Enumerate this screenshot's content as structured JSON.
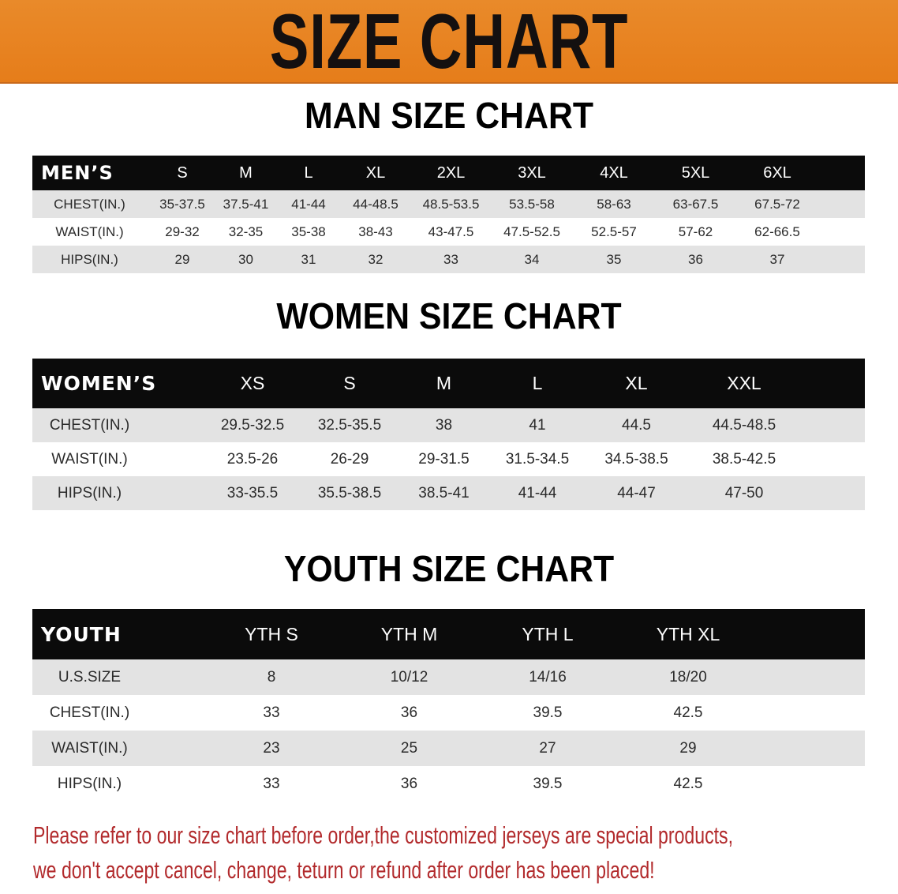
{
  "banner": {
    "title": "SIZE CHART",
    "color": "#e67d1a"
  },
  "men": {
    "title": "MAN SIZE CHART",
    "headers": [
      "MEN’S",
      "S",
      "M",
      "L",
      "XL",
      "2XL",
      "3XL",
      "4XL",
      "5XL",
      "6XL"
    ],
    "rows": [
      [
        "CHEST(IN.)",
        "35-37.5",
        "37.5-41",
        "41-44",
        "44-48.5",
        "48.5-53.5",
        "53.5-58",
        "58-63",
        "63-67.5",
        "67.5-72"
      ],
      [
        "WAIST(IN.)",
        "29-32",
        "32-35",
        "35-38",
        "38-43",
        "43-47.5",
        "47.5-52.5",
        "52.5-57",
        "57-62",
        "62-66.5"
      ],
      [
        "HIPS(IN.)",
        "29",
        "30",
        "31",
        "32",
        "33",
        "34",
        "35",
        "36",
        "37"
      ]
    ]
  },
  "women": {
    "title": "WOMEN SIZE CHART",
    "headers": [
      "WOMEN’S",
      "XS",
      "S",
      "M",
      "L",
      "XL",
      "XXL"
    ],
    "rows": [
      [
        "CHEST(IN.)",
        "29.5-32.5",
        "32.5-35.5",
        "38",
        "41",
        "44.5",
        "44.5-48.5"
      ],
      [
        "WAIST(IN.)",
        "23.5-26",
        "26-29",
        "29-31.5",
        "31.5-34.5",
        "34.5-38.5",
        "38.5-42.5"
      ],
      [
        "HIPS(IN.)",
        "33-35.5",
        "35.5-38.5",
        "38.5-41",
        "41-44",
        "44-47",
        "47-50"
      ]
    ]
  },
  "youth": {
    "title": "YOUTH SIZE CHART",
    "headers": [
      "YOUTH",
      "YTH S",
      "YTH M",
      "YTH L",
      "YTH XL"
    ],
    "rows": [
      [
        "U.S.SIZE",
        "8",
        "10/12",
        "14/16",
        "18/20"
      ],
      [
        "CHEST(IN.)",
        "33",
        "36",
        "39.5",
        "42.5"
      ],
      [
        "WAIST(IN.)",
        "23",
        "25",
        "27",
        "29"
      ],
      [
        "HIPS(IN.)",
        "33",
        "36",
        "39.5",
        "42.5"
      ]
    ]
  },
  "notice": {
    "line1": "Please refer to our size chart before order,the customized jerseys are special products,",
    "line2": "we don't accept cancel, change, teturn or refund after order has been placed!",
    "color": "#b22a2c"
  }
}
